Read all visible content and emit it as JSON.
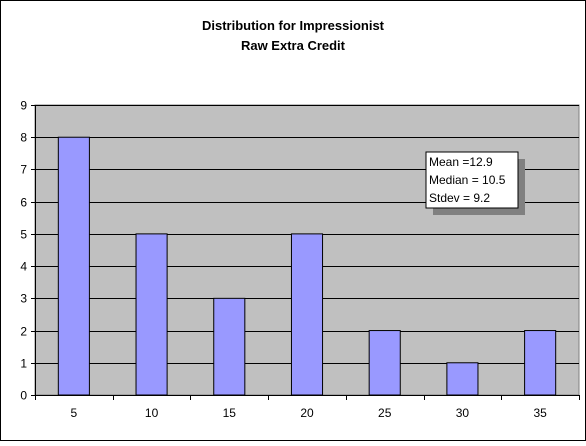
{
  "chart_data": {
    "type": "bar",
    "title": [
      "Distribution for Impressionist",
      "Raw Extra Credit"
    ],
    "xlabel": "",
    "ylabel": "",
    "categories": [
      "5",
      "10",
      "15",
      "20",
      "25",
      "30",
      "35"
    ],
    "values": [
      8,
      5,
      3,
      5,
      2,
      1,
      2
    ],
    "ylim": [
      0,
      9
    ],
    "yticks": [
      "0",
      "1",
      "2",
      "3",
      "4",
      "5",
      "6",
      "7",
      "8",
      "9"
    ],
    "grid": true,
    "legend": "none",
    "annotation": [
      "Mean =12.9",
      "Median = 10.5",
      "Stdev = 9.2"
    ],
    "colors": {
      "bar_fill": "#9999ff",
      "plot_background": "#c0c0c0",
      "gridline": "#000000"
    }
  }
}
